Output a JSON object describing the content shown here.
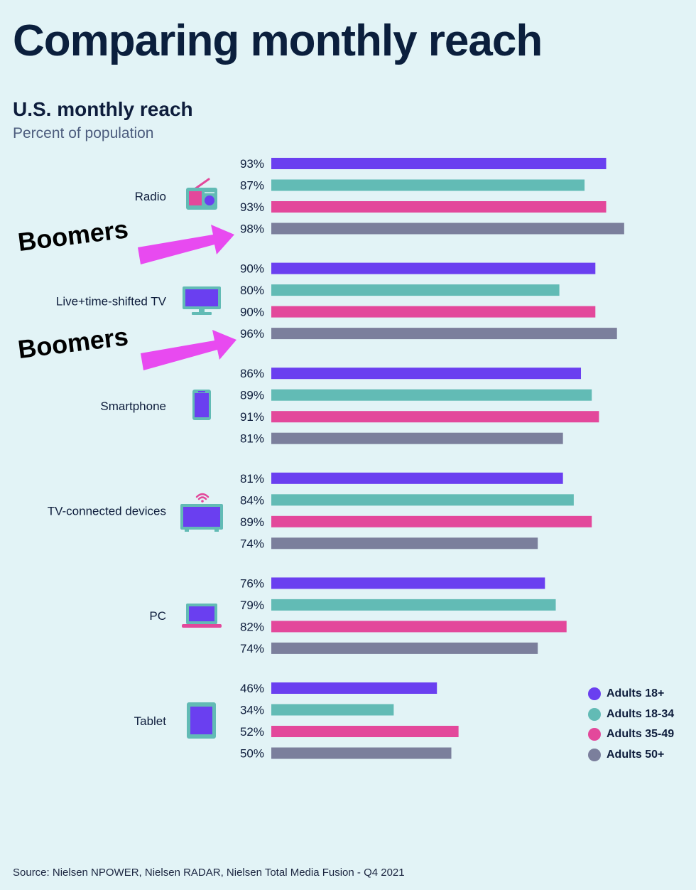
{
  "header": {
    "title": "Comparing monthly reach",
    "subtitle": "U.S. monthly reach",
    "unit": "Percent of population"
  },
  "annotations": [
    "Boomers",
    "Boomers"
  ],
  "source": "Source: Nielsen NPOWER, Nielsen RADAR, Nielsen Total Media Fusion - Q4 2021",
  "colors": {
    "adults_18_plus": "#6a3ff0",
    "adults_18_34": "#62bbb5",
    "adults_35_49": "#e3489b",
    "adults_50_plus": "#7b7f9c",
    "arrow": "#e84af0"
  },
  "chart_data": {
    "type": "bar",
    "orientation": "horizontal",
    "categories": [
      "Radio",
      "Live+time-shifted TV",
      "Smartphone",
      "TV-connected devices",
      "PC",
      "Tablet"
    ],
    "category_icons": [
      "radio-icon",
      "tv-icon",
      "smartphone-icon",
      "connected-tv-icon",
      "laptop-icon",
      "tablet-icon"
    ],
    "series": [
      {
        "name": "Adults 18+",
        "color": "#6a3ff0",
        "values": [
          93,
          90,
          86,
          81,
          76,
          46
        ]
      },
      {
        "name": "Adults 18-34",
        "color": "#62bbb5",
        "values": [
          87,
          80,
          89,
          84,
          79,
          34
        ]
      },
      {
        "name": "Adults 35-49",
        "color": "#e3489b",
        "values": [
          93,
          90,
          91,
          89,
          82,
          52
        ]
      },
      {
        "name": "Adults 50+",
        "color": "#7b7f9c",
        "values": [
          98,
          96,
          81,
          74,
          74,
          50
        ]
      }
    ],
    "value_suffix": "%",
    "xlim": [
      0,
      100
    ],
    "grid": false,
    "legend_position": "bottom-right"
  }
}
